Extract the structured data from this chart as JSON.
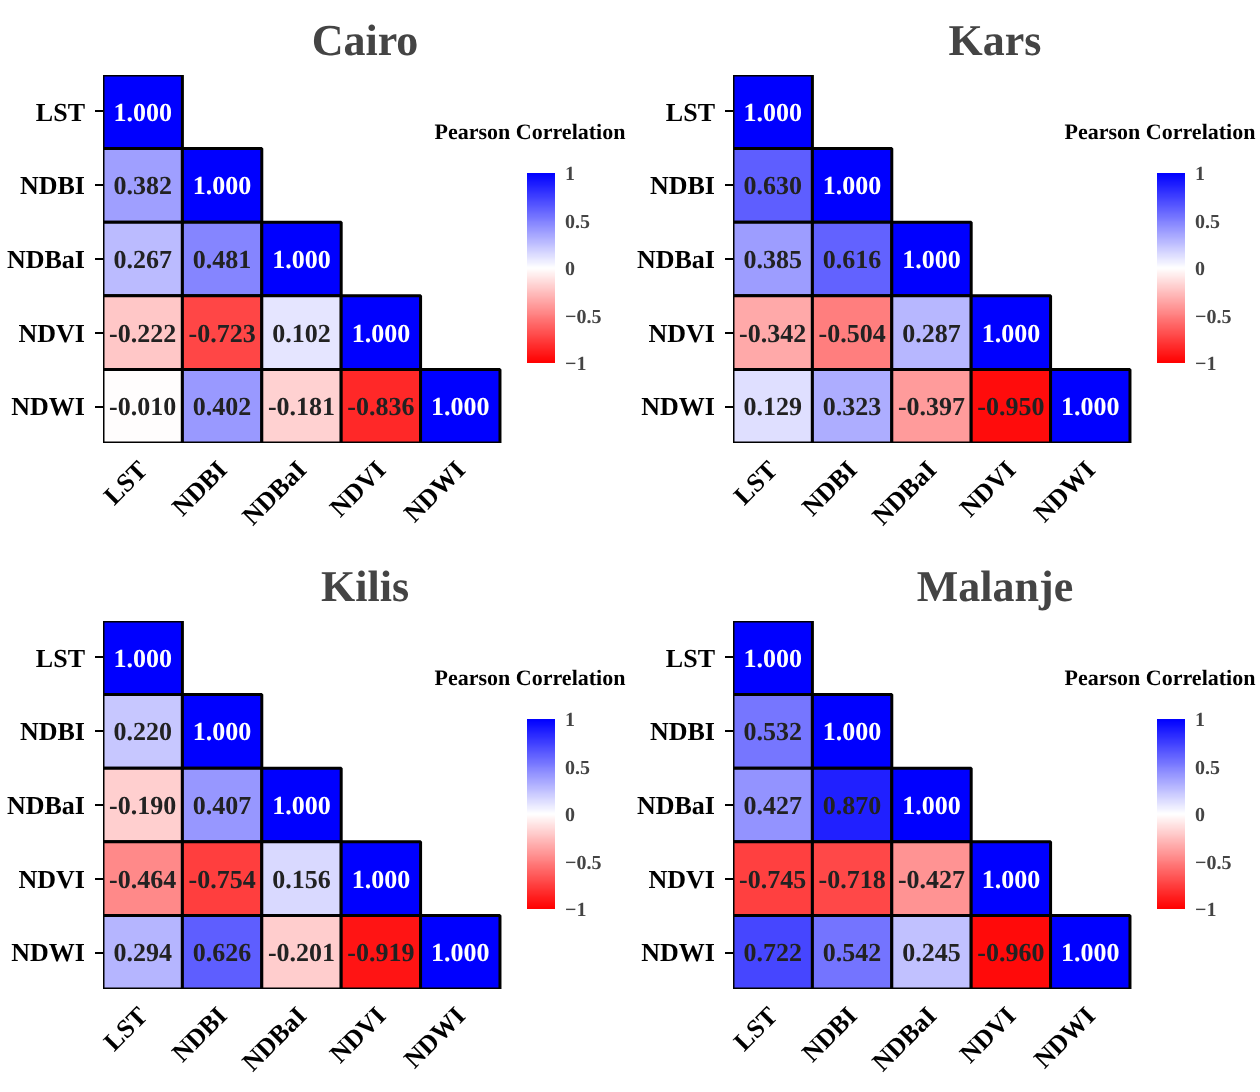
{
  "chart_data": [
    {
      "type": "heatmap",
      "title": "Cairo",
      "clabel": "Pearson Correlation",
      "clim": [
        -1,
        1
      ],
      "cticks": [
        -1,
        -0.5,
        0,
        0.5,
        1
      ],
      "categories": [
        "LST",
        "NDBI",
        "NDBaI",
        "NDVI",
        "NDWI"
      ],
      "y_categories": [
        "LST",
        "NDBI",
        "NDBaI",
        "NDVI",
        "NDWI"
      ],
      "cells": [
        [
          1.0,
          null,
          null,
          null,
          null
        ],
        [
          0.382,
          1.0,
          null,
          null,
          null
        ],
        [
          0.267,
          0.481,
          1.0,
          null,
          null
        ],
        [
          -0.222,
          -0.723,
          0.102,
          1.0,
          null
        ],
        [
          -0.01,
          0.402,
          -0.181,
          -0.836,
          1.0
        ]
      ],
      "cell_labels": [
        [
          "1.000",
          null,
          null,
          null,
          null
        ],
        [
          "0.382",
          "1.000",
          null,
          null,
          null
        ],
        [
          "0.267",
          "0.481",
          "1.000",
          null,
          null
        ],
        [
          "-0.222",
          "-0.723",
          "0.102",
          "1.000",
          null
        ],
        [
          "-0.010",
          "0.402",
          "-0.181",
          "-0.836",
          "1.000"
        ]
      ]
    },
    {
      "type": "heatmap",
      "title": "Kars",
      "clabel": "Pearson Correlation",
      "clim": [
        -1,
        1
      ],
      "cticks": [
        -1,
        -0.5,
        0,
        0.5,
        1
      ],
      "categories": [
        "LST",
        "NDBI",
        "NDBaI",
        "NDVI",
        "NDWI"
      ],
      "y_categories": [
        "LST",
        "NDBI",
        "NDBaI",
        "NDVI",
        "NDWI"
      ],
      "cells": [
        [
          1.0,
          null,
          null,
          null,
          null
        ],
        [
          0.63,
          1.0,
          null,
          null,
          null
        ],
        [
          0.385,
          0.616,
          1.0,
          null,
          null
        ],
        [
          -0.342,
          -0.504,
          0.287,
          1.0,
          null
        ],
        [
          0.129,
          0.323,
          -0.397,
          -0.95,
          1.0
        ]
      ],
      "cell_labels": [
        [
          "1.000",
          null,
          null,
          null,
          null
        ],
        [
          "0.630",
          "1.000",
          null,
          null,
          null
        ],
        [
          "0.385",
          "0.616",
          "1.000",
          null,
          null
        ],
        [
          "-0.342",
          "-0.504",
          "0.287",
          "1.000",
          null
        ],
        [
          "0.129",
          "0.323",
          "-0.397",
          "-0.950",
          "1.000"
        ]
      ]
    },
    {
      "type": "heatmap",
      "title": "Kilis",
      "clabel": "Pearson Correlation",
      "clim": [
        -1,
        1
      ],
      "cticks": [
        -1,
        -0.5,
        0,
        0.5,
        1
      ],
      "categories": [
        "LST",
        "NDBI",
        "NDBaI",
        "NDVI",
        "NDWI"
      ],
      "y_categories": [
        "LST",
        "NDBI",
        "NDBaI",
        "NDVI",
        "NDWI"
      ],
      "cells": [
        [
          1.0,
          null,
          null,
          null,
          null
        ],
        [
          0.22,
          1.0,
          null,
          null,
          null
        ],
        [
          -0.19,
          0.407,
          1.0,
          null,
          null
        ],
        [
          -0.464,
          -0.754,
          0.156,
          1.0,
          null
        ],
        [
          0.294,
          0.626,
          -0.201,
          -0.919,
          1.0
        ]
      ],
      "cell_labels": [
        [
          "1.000",
          null,
          null,
          null,
          null
        ],
        [
          "0.220",
          "1.000",
          null,
          null,
          null
        ],
        [
          "-0.190",
          "0.407",
          "1.000",
          null,
          null
        ],
        [
          "-0.464",
          "-0.754",
          "0.156",
          "1.000",
          null
        ],
        [
          "0.294",
          "0.626",
          "-0.201",
          "-0.919",
          "1.000"
        ]
      ]
    },
    {
      "type": "heatmap",
      "title": "Malanje",
      "clabel": "Pearson Correlation",
      "clim": [
        -1,
        1
      ],
      "cticks": [
        -1,
        -0.5,
        0,
        0.5,
        1
      ],
      "categories": [
        "LST",
        "NDBI",
        "NDBaI",
        "NDVI",
        "NDWI"
      ],
      "y_categories": [
        "LST",
        "NDBI",
        "NDBaI",
        "NDVI",
        "NDWI"
      ],
      "cells": [
        [
          1.0,
          null,
          null,
          null,
          null
        ],
        [
          0.532,
          1.0,
          null,
          null,
          null
        ],
        [
          0.427,
          0.87,
          1.0,
          null,
          null
        ],
        [
          -0.745,
          -0.718,
          -0.427,
          1.0,
          null
        ],
        [
          0.722,
          0.542,
          0.245,
          -0.96,
          1.0
        ]
      ],
      "cell_labels": [
        [
          "1.000",
          null,
          null,
          null,
          null
        ],
        [
          "0.532",
          "1.000",
          null,
          null,
          null
        ],
        [
          "0.427",
          "0.870",
          "1.000",
          null,
          null
        ],
        [
          "-0.745",
          "-0.718",
          "-0.427",
          "1.000",
          null
        ],
        [
          "0.722",
          "0.542",
          "0.245",
          "-0.960",
          "1.000"
        ]
      ]
    }
  ]
}
